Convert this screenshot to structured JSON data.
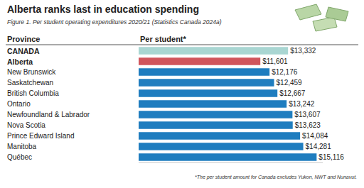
{
  "chart_data": {
    "type": "bar",
    "orientation": "horizontal",
    "title": "Alberta ranks last in education spending",
    "subtitle": "Figure 1. Per student operating expenditures 2020/21 (Statistics Canada 2024a)",
    "ylabel": "Province",
    "xlabel": "Per student*",
    "annotations": [
      "*The per student amount for Canada excludes Yukon, NWT and Nunavut."
    ],
    "categories": [
      "CANADA",
      "Alberta",
      "New Brunswick",
      "Saskatchewan",
      "British Columbia",
      "Ontario",
      "Newfoundland & Labrador",
      "Nova Scotia",
      "Prince Edward Island",
      "Manitoba",
      "Québec"
    ],
    "values": [
      13332,
      11601,
      12176,
      12459,
      12667,
      13242,
      13607,
      13623,
      14084,
      14281,
      15116
    ],
    "value_labels": [
      "$13,332",
      "$11,601",
      "$12,176",
      "$12,459",
      "$12,667",
      "$13,242",
      "$13,607",
      "$13,623",
      "$14,084",
      "$14,281",
      "$15,116"
    ],
    "colors": [
      "#a9d6d2",
      "#d1555c",
      "#1f7dbf",
      "#1f7dbf",
      "#1f7dbf",
      "#1f7dbf",
      "#1f7dbf",
      "#1f7dbf",
      "#1f7dbf",
      "#1f7dbf",
      "#1f7dbf"
    ],
    "xlim": [
      4000,
      15500
    ],
    "data_labels": true,
    "tick_labels": "y",
    "grid": false
  }
}
